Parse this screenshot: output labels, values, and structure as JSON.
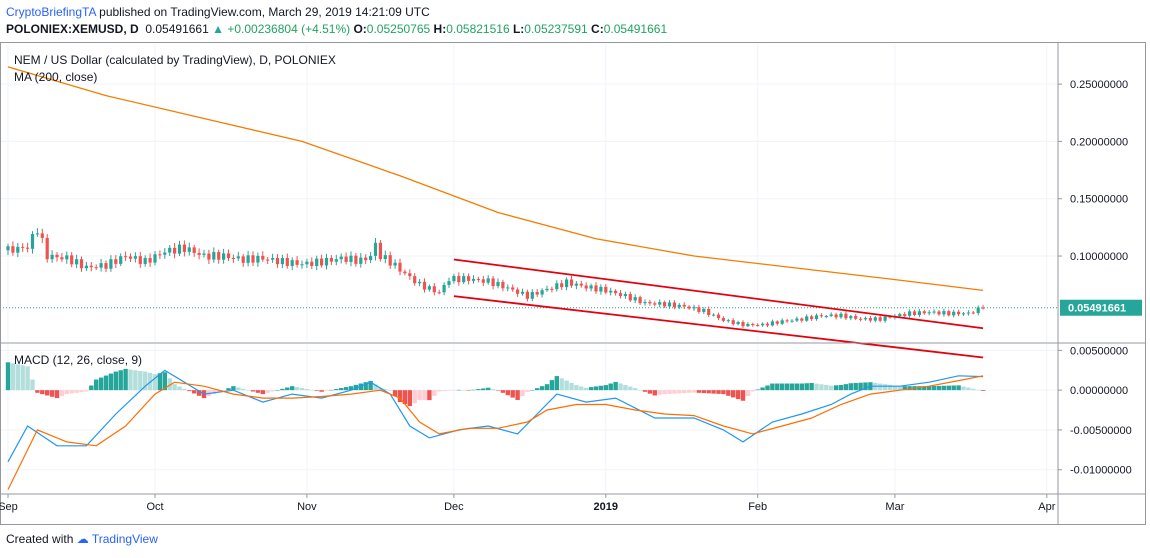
{
  "header": {
    "author": "CryptoBriefingTA",
    "published_text": "published on TradingView.com, March 29, 2019 14:21:09 UTC",
    "symbol": "POLONIEX:XEMUSD, D",
    "last": "0.05491661",
    "change": "+0.00236804 (+4.51%)",
    "o_label": "O:",
    "o_value": "0.05250765",
    "h_label": "H:",
    "h_value": "0.05821516",
    "l_label": "L:",
    "l_value": "0.05237591",
    "c_label": "C:",
    "c_value": "0.05491661"
  },
  "footer": {
    "created_with": "Created with",
    "brand": "TradingView"
  },
  "colors": {
    "up": "#26a69a",
    "down": "#ef5350",
    "ma": "#f57c00",
    "channel": "#e5000e",
    "macd": "#2196f3",
    "signal": "#ff6d00"
  },
  "chart_data": [
    {
      "type": "candlestick",
      "title": "NEM / US Dollar (calculated by TradingView), D, POLONIEX",
      "indicator_label": "MA (200, close)",
      "x_tick_labels": [
        "Sep",
        "Oct",
        "Nov",
        "Dec",
        "2019",
        "Feb",
        "Mar",
        "Apr"
      ],
      "x_tick_days": [
        0,
        30,
        61,
        91,
        122,
        153,
        181,
        212
      ],
      "y_tick_labels": [
        "0.25000000",
        "0.20000000",
        "0.15000000",
        "0.10000000"
      ],
      "y_ticks": [
        0.25,
        0.2,
        0.15,
        0.1
      ],
      "ylim": [
        0.025,
        0.285
      ],
      "last_price_label": "0.05491661",
      "last_price": 0.0549,
      "close_keypoints": [
        [
          0,
          0.105
        ],
        [
          4,
          0.108
        ],
        [
          6,
          0.124
        ],
        [
          8,
          0.1
        ],
        [
          12,
          0.098
        ],
        [
          16,
          0.09
        ],
        [
          20,
          0.092
        ],
        [
          24,
          0.1
        ],
        [
          28,
          0.095
        ],
        [
          32,
          0.104
        ],
        [
          36,
          0.107
        ],
        [
          40,
          0.1
        ],
        [
          44,
          0.1
        ],
        [
          48,
          0.097
        ],
        [
          52,
          0.098
        ],
        [
          56,
          0.095
        ],
        [
          60,
          0.093
        ],
        [
          64,
          0.095
        ],
        [
          68,
          0.098
        ],
        [
          72,
          0.096
        ],
        [
          74,
          0.1
        ],
        [
          75,
          0.11
        ],
        [
          76,
          0.1
        ],
        [
          78,
          0.095
        ],
        [
          80,
          0.088
        ],
        [
          84,
          0.075
        ],
        [
          88,
          0.068
        ],
        [
          90,
          0.08
        ],
        [
          94,
          0.08
        ],
        [
          98,
          0.078
        ],
        [
          102,
          0.072
        ],
        [
          106,
          0.065
        ],
        [
          110,
          0.071
        ],
        [
          114,
          0.077
        ],
        [
          118,
          0.073
        ],
        [
          122,
          0.07
        ],
        [
          126,
          0.065
        ],
        [
          130,
          0.059
        ],
        [
          134,
          0.058
        ],
        [
          138,
          0.056
        ],
        [
          142,
          0.052
        ],
        [
          146,
          0.044
        ],
        [
          150,
          0.04
        ],
        [
          154,
          0.04
        ],
        [
          158,
          0.043
        ],
        [
          162,
          0.045
        ],
        [
          166,
          0.048
        ],
        [
          170,
          0.048
        ],
        [
          174,
          0.045
        ],
        [
          178,
          0.045
        ],
        [
          180,
          0.047
        ],
        [
          184,
          0.05
        ],
        [
          188,
          0.051
        ],
        [
          192,
          0.05
        ],
        [
          196,
          0.05
        ],
        [
          199,
          0.0549
        ]
      ],
      "ma200_keypoints": [
        [
          0,
          0.265
        ],
        [
          20,
          0.24
        ],
        [
          40,
          0.22
        ],
        [
          60,
          0.2
        ],
        [
          80,
          0.17
        ],
        [
          100,
          0.138
        ],
        [
          120,
          0.115
        ],
        [
          140,
          0.1
        ],
        [
          160,
          0.09
        ],
        [
          180,
          0.08
        ],
        [
          199,
          0.07
        ]
      ],
      "channel_upper": [
        [
          91,
          0.097
        ],
        [
          199,
          0.037
        ]
      ],
      "channel_lower": [
        [
          91,
          0.065
        ],
        [
          199,
          0.0115
        ]
      ]
    },
    {
      "type": "macd",
      "title": "MACD (12, 26, close, 9)",
      "y_tick_labels": [
        "0.00500000",
        "0.00000000",
        "-0.00500000",
        "-0.01000000"
      ],
      "y_ticks": [
        0.005,
        0.0,
        -0.005,
        -0.01
      ],
      "ylim": [
        -0.0128,
        0.0058
      ],
      "macd_keypoints": [
        [
          0,
          -0.009
        ],
        [
          4,
          -0.0045
        ],
        [
          10,
          -0.007
        ],
        [
          16,
          -0.007
        ],
        [
          22,
          -0.003
        ],
        [
          28,
          0.0005
        ],
        [
          32,
          0.0025
        ],
        [
          36,
          0.001
        ],
        [
          40,
          -0.0005
        ],
        [
          46,
          0.0
        ],
        [
          52,
          -0.0015
        ],
        [
          58,
          -0.0005
        ],
        [
          64,
          -0.001
        ],
        [
          70,
          0.0
        ],
        [
          74,
          0.001
        ],
        [
          78,
          -0.0005
        ],
        [
          82,
          -0.0045
        ],
        [
          86,
          -0.006
        ],
        [
          92,
          -0.005
        ],
        [
          98,
          -0.0045
        ],
        [
          104,
          -0.0055
        ],
        [
          108,
          -0.003
        ],
        [
          112,
          -0.0005
        ],
        [
          118,
          -0.0015
        ],
        [
          124,
          -0.001
        ],
        [
          132,
          -0.0035
        ],
        [
          140,
          -0.0035
        ],
        [
          146,
          -0.005
        ],
        [
          150,
          -0.0065
        ],
        [
          156,
          -0.004
        ],
        [
          162,
          -0.003
        ],
        [
          168,
          -0.0018
        ],
        [
          172,
          -0.0005
        ],
        [
          176,
          0.0005
        ],
        [
          182,
          0.0005
        ],
        [
          188,
          0.001
        ],
        [
          194,
          0.0018
        ],
        [
          199,
          0.0017
        ]
      ],
      "signal_keypoints": [
        [
          0,
          -0.0125
        ],
        [
          6,
          -0.005
        ],
        [
          12,
          -0.0065
        ],
        [
          18,
          -0.007
        ],
        [
          24,
          -0.0045
        ],
        [
          30,
          -0.0005
        ],
        [
          34,
          0.001
        ],
        [
          40,
          0.0005
        ],
        [
          46,
          -0.0005
        ],
        [
          52,
          -0.001
        ],
        [
          58,
          -0.001
        ],
        [
          64,
          -0.0008
        ],
        [
          70,
          -0.0005
        ],
        [
          76,
          0.0
        ],
        [
          80,
          -0.001
        ],
        [
          84,
          -0.004
        ],
        [
          88,
          -0.0055
        ],
        [
          94,
          -0.0048
        ],
        [
          100,
          -0.0048
        ],
        [
          106,
          -0.004
        ],
        [
          110,
          -0.0025
        ],
        [
          116,
          -0.0018
        ],
        [
          122,
          -0.0018
        ],
        [
          128,
          -0.0025
        ],
        [
          134,
          -0.003
        ],
        [
          140,
          -0.0032
        ],
        [
          146,
          -0.0045
        ],
        [
          152,
          -0.0055
        ],
        [
          158,
          -0.0045
        ],
        [
          164,
          -0.0035
        ],
        [
          170,
          -0.0018
        ],
        [
          176,
          -0.0005
        ],
        [
          182,
          0.0
        ],
        [
          188,
          0.0005
        ],
        [
          194,
          0.0012
        ],
        [
          199,
          0.0018
        ]
      ]
    }
  ]
}
